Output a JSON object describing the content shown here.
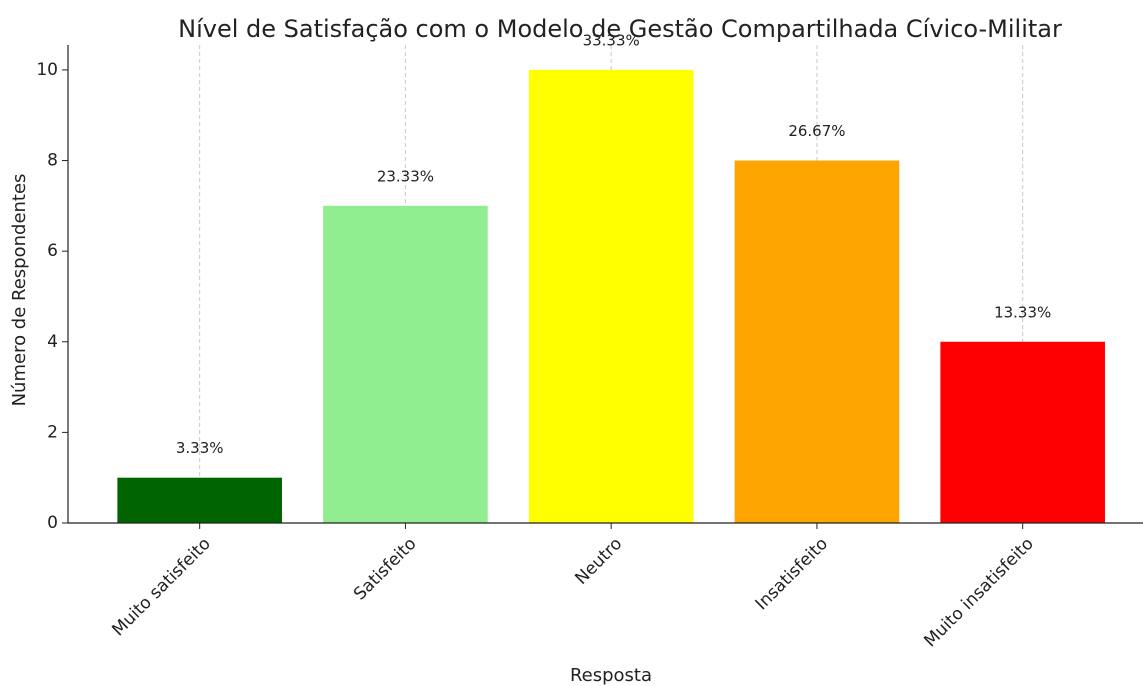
{
  "chart_data": {
    "type": "bar",
    "title": "Nível de Satisfação com o Modelo de Gestão Compartilhada Cívico-Militar",
    "x_label": "Resposta",
    "y_label": "Número de Respondentes",
    "categories": [
      "Muito satisfeito",
      "Satisfeito",
      "Neutro",
      "Insatisfeito",
      "Muito insatisfeito"
    ],
    "values": [
      1,
      7,
      10,
      8,
      4
    ],
    "value_labels": [
      "3.33%",
      "23.33%",
      "33.33%",
      "26.67%",
      "13.33%"
    ],
    "colors": [
      "#006400",
      "#90ee90",
      "#ffff00",
      "#ffa500",
      "#ff0000"
    ],
    "ylim": [
      0,
      10.55
    ],
    "yticks": [
      0,
      2,
      4,
      6,
      8,
      10
    ],
    "grid": true
  }
}
